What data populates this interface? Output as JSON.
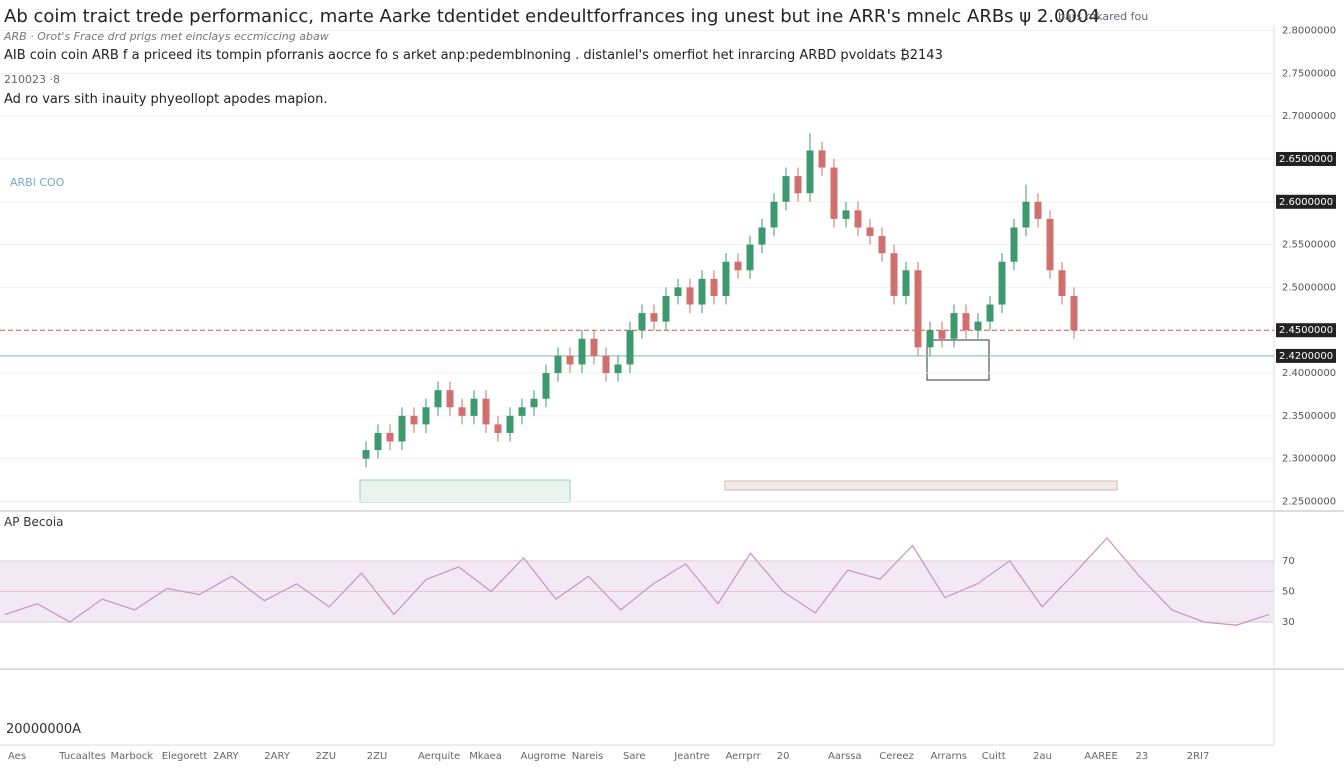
{
  "header": {
    "title": "Ab coim traict trede performanicc, marte Aarke tdentidet endeultforfrances ing unest but ine ARR's mnelc ARBs ψ 2.0004",
    "legend_line": "ARB · Orot's Frace drd prigs met einclays eccmiccing abaw",
    "description": "AIB coin coin ARB f a priceed its tompin pforranis aocrce fo s arket anp:pedemblnoning . distanlel's omerfiot het inrarcing ARBD pvoldats ₿2143",
    "stamp": "210023 ·8",
    "note": "Ad ro vars sith inauity phyeollopt apodes mapion.",
    "top_right": "bars mkared fou"
  },
  "left_label": "ARBl COO",
  "bottom_left": "20000000A",
  "time_labels": [
    "Aes",
    "Tucaaltes",
    "Marbock",
    "Elegorett",
    "2ARY",
    "2ARY",
    "2ZU",
    "2ZU",
    "Aerquite",
    "Mkaea",
    "Augrome",
    "Nareis",
    "Sare",
    "Jeantre",
    "Aerrprr",
    "20",
    "Aarssa",
    "Cereez",
    "Arrarns",
    "Cuitt",
    "2au",
    "AAREE",
    "23",
    "2RI7"
  ],
  "chart_data": {
    "type": "candlestick",
    "series": [
      {
        "name": "ARB",
        "color_up": "#3d9a6e",
        "color_down": "#d0706c",
        "open": [
          2.3,
          2.31,
          2.33,
          2.32,
          2.35,
          2.34,
          2.36,
          2.38,
          2.36,
          2.35,
          2.37,
          2.34,
          2.33,
          2.35,
          2.36,
          2.37,
          2.4,
          2.42,
          2.41,
          2.44,
          2.42,
          2.4,
          2.41,
          2.45,
          2.47,
          2.46,
          2.49,
          2.5,
          2.48,
          2.51,
          2.49,
          2.53,
          2.52,
          2.55,
          2.57,
          2.6,
          2.63,
          2.61,
          2.66,
          2.64,
          2.58,
          2.59,
          2.57,
          2.56,
          2.54,
          2.49,
          2.52,
          2.43,
          2.45,
          2.44,
          2.47,
          2.45,
          2.46,
          2.48,
          2.53,
          2.57,
          2.6,
          2.58,
          2.52,
          2.49
        ],
        "high": [
          2.32,
          2.34,
          2.34,
          2.36,
          2.36,
          2.37,
          2.39,
          2.39,
          2.37,
          2.38,
          2.38,
          2.35,
          2.36,
          2.37,
          2.38,
          2.41,
          2.43,
          2.43,
          2.45,
          2.45,
          2.43,
          2.42,
          2.46,
          2.48,
          2.48,
          2.5,
          2.51,
          2.51,
          2.52,
          2.52,
          2.54,
          2.54,
          2.56,
          2.58,
          2.61,
          2.64,
          2.64,
          2.68,
          2.67,
          2.65,
          2.6,
          2.6,
          2.58,
          2.57,
          2.55,
          2.53,
          2.53,
          2.46,
          2.46,
          2.48,
          2.48,
          2.47,
          2.49,
          2.54,
          2.58,
          2.62,
          2.61,
          2.59,
          2.53,
          2.5
        ],
        "low": [
          2.29,
          2.3,
          2.31,
          2.31,
          2.33,
          2.33,
          2.35,
          2.35,
          2.34,
          2.34,
          2.33,
          2.32,
          2.32,
          2.34,
          2.35,
          2.36,
          2.39,
          2.4,
          2.4,
          2.41,
          2.39,
          2.39,
          2.4,
          2.44,
          2.45,
          2.45,
          2.48,
          2.47,
          2.47,
          2.48,
          2.48,
          2.51,
          2.51,
          2.54,
          2.56,
          2.59,
          2.6,
          2.6,
          2.63,
          2.57,
          2.57,
          2.56,
          2.55,
          2.53,
          2.48,
          2.48,
          2.42,
          2.42,
          2.43,
          2.43,
          2.44,
          2.44,
          2.45,
          2.47,
          2.52,
          2.56,
          2.57,
          2.51,
          2.48,
          2.44
        ],
        "close": [
          2.31,
          2.33,
          2.32,
          2.35,
          2.34,
          2.36,
          2.38,
          2.36,
          2.35,
          2.37,
          2.34,
          2.33,
          2.35,
          2.36,
          2.37,
          2.4,
          2.42,
          2.41,
          2.44,
          2.42,
          2.4,
          2.41,
          2.45,
          2.47,
          2.46,
          2.49,
          2.5,
          2.48,
          2.51,
          2.49,
          2.53,
          2.52,
          2.55,
          2.57,
          2.6,
          2.63,
          2.61,
          2.66,
          2.64,
          2.58,
          2.59,
          2.57,
          2.56,
          2.54,
          2.49,
          2.52,
          2.43,
          2.45,
          2.44,
          2.47,
          2.45,
          2.46,
          2.48,
          2.53,
          2.57,
          2.6,
          2.58,
          2.52,
          2.49,
          2.45
        ]
      }
    ],
    "ylim": [
      2.24,
      2.81
    ],
    "yticks": [
      {
        "value": 2.8,
        "label": "2.8000000"
      },
      {
        "value": 2.75,
        "label": "2.7500000"
      },
      {
        "value": 2.7,
        "label": "2.7000000"
      },
      {
        "value": 2.65,
        "label": "2.6500000"
      },
      {
        "value": 2.6,
        "label": "2.6000000"
      },
      {
        "value": 2.55,
        "label": "2.5500000"
      },
      {
        "value": 2.5,
        "label": "2.5000000"
      },
      {
        "value": 2.45,
        "label": "2.4500000"
      },
      {
        "value": 2.4,
        "label": "2.4000000"
      },
      {
        "value": 2.35,
        "label": "2.3500000"
      },
      {
        "value": 2.3,
        "label": "2.3000000"
      },
      {
        "value": 2.25,
        "label": "2.2500000"
      }
    ],
    "grid": true,
    "price_lines": [
      {
        "value": 2.45,
        "label": "2.4500000",
        "color": "#d9534f"
      },
      {
        "value": 2.42,
        "label": "2.4200000",
        "color": "#7fb8b0"
      }
    ],
    "price_tags": [
      {
        "value": 2.65,
        "label": "2.6500000"
      },
      {
        "value": 2.6,
        "label": "2.6000000"
      }
    ]
  },
  "oscillator": {
    "type": "line",
    "name": "AP Becoia",
    "color": "#c79bc4",
    "values": [
      35,
      42,
      30,
      45,
      38,
      52,
      48,
      60,
      44,
      55,
      40,
      62,
      35,
      58,
      66,
      50,
      72,
      45,
      60,
      38,
      55,
      68,
      42,
      75,
      50,
      36,
      64,
      58,
      80,
      46,
      55,
      70,
      40,
      62,
      85,
      60,
      38,
      30,
      28,
      35
    ],
    "ylim": [
      0,
      100
    ],
    "yticks": [
      30,
      50,
      70
    ],
    "band": [
      30,
      70
    ]
  }
}
